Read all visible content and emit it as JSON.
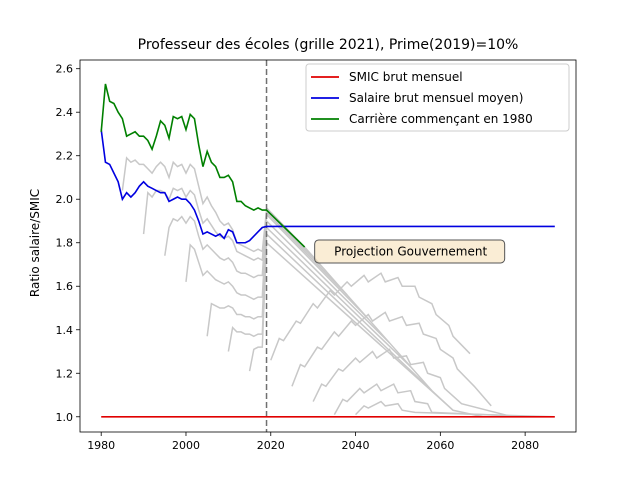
{
  "chart_data": {
    "type": "line",
    "title": "Professeur des écoles (grille 2021), Prime(2019)=10%",
    "xlabel": "",
    "ylabel": "Ratio salaire/SMIC",
    "xlim": [
      1975,
      2092
    ],
    "ylim": [
      0.93,
      2.64
    ],
    "xticks": [
      1980,
      2000,
      2020,
      2040,
      2060,
      2080
    ],
    "yticks": [
      1.0,
      1.2,
      1.4,
      1.6,
      1.8,
      2.0,
      2.2,
      2.4,
      2.6
    ],
    "xtick_labels": [
      "1980",
      "2000",
      "2020",
      "2040",
      "2060",
      "2080"
    ],
    "ytick_labels": [
      "1.0",
      "1.2",
      "1.4",
      "1.6",
      "1.8",
      "2.0",
      "2.2",
      "2.4",
      "2.6"
    ],
    "vline": {
      "x": 2019,
      "style": "dashed",
      "color": "#707070"
    },
    "annotation": {
      "text": "Projection Gouvernement",
      "x": 2053,
      "y": 1.76
    },
    "legend": {
      "location": "upper right"
    },
    "series": [
      {
        "name": "SMIC brut mensuel",
        "color": "#e00000",
        "points": [
          [
            1980,
            1.0
          ],
          [
            2087,
            1.0
          ]
        ]
      },
      {
        "name": "Salaire brut mensuel moyen)",
        "color": "#0000e0",
        "points": [
          [
            1980,
            2.32
          ],
          [
            1981,
            2.17
          ],
          [
            1982,
            2.16
          ],
          [
            1983,
            2.12
          ],
          [
            1984,
            2.08
          ],
          [
            1985,
            2.0
          ],
          [
            1986,
            2.03
          ],
          [
            1987,
            2.01
          ],
          [
            1988,
            2.03
          ],
          [
            1989,
            2.06
          ],
          [
            1990,
            2.08
          ],
          [
            1991,
            2.06
          ],
          [
            1992,
            2.05
          ],
          [
            1993,
            2.04
          ],
          [
            1994,
            2.03
          ],
          [
            1995,
            2.03
          ],
          [
            1996,
            1.99
          ],
          [
            1997,
            2.0
          ],
          [
            1998,
            2.01
          ],
          [
            1999,
            2.0
          ],
          [
            2000,
            2.0
          ],
          [
            2001,
            1.98
          ],
          [
            2002,
            1.95
          ],
          [
            2003,
            1.9
          ],
          [
            2004,
            1.84
          ],
          [
            2005,
            1.85
          ],
          [
            2006,
            1.84
          ],
          [
            2007,
            1.83
          ],
          [
            2008,
            1.84
          ],
          [
            2009,
            1.82
          ],
          [
            2010,
            1.86
          ],
          [
            2011,
            1.85
          ],
          [
            2012,
            1.8
          ],
          [
            2013,
            1.8
          ],
          [
            2014,
            1.8
          ],
          [
            2015,
            1.81
          ],
          [
            2016,
            1.83
          ],
          [
            2017,
            1.85
          ],
          [
            2018,
            1.87
          ],
          [
            2019,
            1.875
          ],
          [
            2087,
            1.875
          ]
        ]
      },
      {
        "name": "Carrière commençant en 1980",
        "color": "#008000",
        "points": [
          [
            1980,
            2.31
          ],
          [
            1981,
            2.53
          ],
          [
            1982,
            2.45
          ],
          [
            1983,
            2.44
          ],
          [
            1984,
            2.4
          ],
          [
            1985,
            2.37
          ],
          [
            1986,
            2.29
          ],
          [
            1987,
            2.3
          ],
          [
            1988,
            2.31
          ],
          [
            1989,
            2.29
          ],
          [
            1990,
            2.29
          ],
          [
            1991,
            2.27
          ],
          [
            1992,
            2.23
          ],
          [
            1993,
            2.29
          ],
          [
            1994,
            2.36
          ],
          [
            1995,
            2.34
          ],
          [
            1996,
            2.28
          ],
          [
            1997,
            2.38
          ],
          [
            1998,
            2.37
          ],
          [
            1999,
            2.38
          ],
          [
            2000,
            2.32
          ],
          [
            2001,
            2.39
          ],
          [
            2002,
            2.37
          ],
          [
            2003,
            2.25
          ],
          [
            2004,
            2.15
          ],
          [
            2005,
            2.22
          ],
          [
            2006,
            2.17
          ],
          [
            2007,
            2.15
          ],
          [
            2008,
            2.1
          ],
          [
            2009,
            2.1
          ],
          [
            2010,
            2.11
          ],
          [
            2011,
            2.08
          ],
          [
            2012,
            1.99
          ],
          [
            2013,
            1.99
          ],
          [
            2014,
            1.97
          ],
          [
            2015,
            1.96
          ],
          [
            2016,
            1.95
          ],
          [
            2017,
            1.96
          ],
          [
            2018,
            1.95
          ],
          [
            2019,
            1.95
          ],
          [
            2028,
            1.78
          ]
        ]
      }
    ],
    "background_series_color": "#c8c8c8",
    "background_series": [
      [
        [
          1985,
          2.04
        ],
        [
          1986,
          2.19
        ],
        [
          1987,
          2.17
        ],
        [
          1988,
          2.18
        ],
        [
          1989,
          2.16
        ],
        [
          1990,
          2.16
        ],
        [
          1991,
          2.14
        ],
        [
          1992,
          2.12
        ],
        [
          1993,
          2.15
        ],
        [
          1994,
          2.17
        ],
        [
          1995,
          2.15
        ],
        [
          1996,
          2.1
        ],
        [
          1997,
          2.17
        ],
        [
          1998,
          2.15
        ],
        [
          1999,
          2.16
        ],
        [
          2000,
          2.12
        ],
        [
          2001,
          2.16
        ],
        [
          2002,
          2.14
        ],
        [
          2003,
          2.06
        ],
        [
          2004,
          1.98
        ],
        [
          2005,
          2.01
        ],
        [
          2006,
          1.97
        ],
        [
          2007,
          1.94
        ],
        [
          2008,
          1.9
        ],
        [
          2009,
          1.88
        ],
        [
          2010,
          1.89
        ],
        [
          2011,
          1.86
        ],
        [
          2012,
          1.8
        ],
        [
          2013,
          1.79
        ],
        [
          2014,
          1.78
        ],
        [
          2015,
          1.77
        ],
        [
          2016,
          1.76
        ],
        [
          2017,
          1.77
        ],
        [
          2018,
          1.76
        ],
        [
          2019,
          1.95
        ],
        [
          2033,
          1.67
        ]
      ],
      [
        [
          1990,
          1.84
        ],
        [
          1991,
          2.03
        ],
        [
          1992,
          2.01
        ],
        [
          1993,
          2.04
        ],
        [
          1994,
          2.04
        ],
        [
          1995,
          2.03
        ],
        [
          1996,
          2.0
        ],
        [
          1997,
          2.05
        ],
        [
          1998,
          2.04
        ],
        [
          1999,
          2.05
        ],
        [
          2000,
          2.01
        ],
        [
          2001,
          2.04
        ],
        [
          2002,
          2.02
        ],
        [
          2003,
          1.95
        ],
        [
          2004,
          1.89
        ],
        [
          2005,
          1.91
        ],
        [
          2006,
          1.88
        ],
        [
          2007,
          1.85
        ],
        [
          2008,
          1.83
        ],
        [
          2009,
          1.82
        ],
        [
          2010,
          1.83
        ],
        [
          2011,
          1.81
        ],
        [
          2012,
          1.76
        ],
        [
          2013,
          1.75
        ],
        [
          2014,
          1.74
        ],
        [
          2015,
          1.73
        ],
        [
          2016,
          1.72
        ],
        [
          2017,
          1.73
        ],
        [
          2018,
          1.72
        ],
        [
          2019,
          1.94
        ],
        [
          2038,
          1.56
        ]
      ],
      [
        [
          1995,
          1.74
        ],
        [
          1996,
          1.87
        ],
        [
          1997,
          1.91
        ],
        [
          1998,
          1.9
        ],
        [
          1999,
          1.92
        ],
        [
          2000,
          1.89
        ],
        [
          2001,
          1.92
        ],
        [
          2002,
          1.9
        ],
        [
          2003,
          1.83
        ],
        [
          2004,
          1.77
        ],
        [
          2005,
          1.79
        ],
        [
          2006,
          1.77
        ],
        [
          2007,
          1.75
        ],
        [
          2008,
          1.73
        ],
        [
          2009,
          1.72
        ],
        [
          2010,
          1.73
        ],
        [
          2011,
          1.71
        ],
        [
          2012,
          1.67
        ],
        [
          2013,
          1.66
        ],
        [
          2014,
          1.66
        ],
        [
          2015,
          1.65
        ],
        [
          2016,
          1.64
        ],
        [
          2017,
          1.65
        ],
        [
          2018,
          1.65
        ],
        [
          2019,
          1.93
        ],
        [
          2043,
          1.45
        ]
      ],
      [
        [
          2000,
          1.62
        ],
        [
          2001,
          1.79
        ],
        [
          2002,
          1.77
        ],
        [
          2003,
          1.71
        ],
        [
          2004,
          1.65
        ],
        [
          2005,
          1.67
        ],
        [
          2006,
          1.65
        ],
        [
          2007,
          1.63
        ],
        [
          2008,
          1.62
        ],
        [
          2009,
          1.61
        ],
        [
          2010,
          1.62
        ],
        [
          2011,
          1.6
        ],
        [
          2012,
          1.57
        ],
        [
          2013,
          1.56
        ],
        [
          2014,
          1.56
        ],
        [
          2015,
          1.55
        ],
        [
          2016,
          1.54
        ],
        [
          2017,
          1.55
        ],
        [
          2018,
          1.55
        ],
        [
          2019,
          1.9
        ],
        [
          2048,
          1.34
        ]
      ],
      [
        [
          2005,
          1.37
        ],
        [
          2006,
          1.52
        ],
        [
          2007,
          1.51
        ],
        [
          2008,
          1.5
        ],
        [
          2009,
          1.5
        ],
        [
          2010,
          1.51
        ],
        [
          2011,
          1.5
        ],
        [
          2012,
          1.47
        ],
        [
          2013,
          1.47
        ],
        [
          2014,
          1.46
        ],
        [
          2015,
          1.46
        ],
        [
          2016,
          1.45
        ],
        [
          2017,
          1.46
        ],
        [
          2018,
          1.46
        ],
        [
          2019,
          1.87
        ],
        [
          2053,
          1.23
        ]
      ],
      [
        [
          2010,
          1.3
        ],
        [
          2011,
          1.41
        ],
        [
          2012,
          1.39
        ],
        [
          2013,
          1.39
        ],
        [
          2014,
          1.38
        ],
        [
          2015,
          1.38
        ],
        [
          2016,
          1.37
        ],
        [
          2017,
          1.38
        ],
        [
          2018,
          1.38
        ],
        [
          2019,
          1.84
        ],
        [
          2058,
          1.12
        ]
      ],
      [
        [
          2015,
          1.21
        ],
        [
          2016,
          1.31
        ],
        [
          2017,
          1.32
        ],
        [
          2018,
          1.32
        ],
        [
          2019,
          1.8
        ],
        [
          2063,
          1.03
        ]
      ],
      [
        [
          2020,
          1.26
        ],
        [
          2022,
          1.36
        ],
        [
          2023,
          1.35
        ],
        [
          2026,
          1.44
        ],
        [
          2027,
          1.43
        ],
        [
          2030,
          1.52
        ],
        [
          2031,
          1.5
        ],
        [
          2034,
          1.58
        ],
        [
          2035,
          1.56
        ],
        [
          2038,
          1.62
        ],
        [
          2039,
          1.6
        ],
        [
          2042,
          1.65
        ],
        [
          2043,
          1.62
        ],
        [
          2046,
          1.66
        ],
        [
          2047,
          1.62
        ],
        [
          2050,
          1.64
        ],
        [
          2051,
          1.6
        ],
        [
          2054,
          1.6
        ],
        [
          2055,
          1.55
        ],
        [
          2058,
          1.52
        ],
        [
          2059,
          1.47
        ],
        [
          2062,
          1.42
        ],
        [
          2063,
          1.37
        ],
        [
          2067,
          1.29
        ]
      ],
      [
        [
          2025,
          1.14
        ],
        [
          2027,
          1.24
        ],
        [
          2028,
          1.23
        ],
        [
          2031,
          1.32
        ],
        [
          2032,
          1.31
        ],
        [
          2035,
          1.39
        ],
        [
          2036,
          1.37
        ],
        [
          2039,
          1.44
        ],
        [
          2040,
          1.42
        ],
        [
          2043,
          1.47
        ],
        [
          2044,
          1.44
        ],
        [
          2047,
          1.48
        ],
        [
          2048,
          1.44
        ],
        [
          2051,
          1.46
        ],
        [
          2052,
          1.42
        ],
        [
          2055,
          1.43
        ],
        [
          2056,
          1.38
        ],
        [
          2059,
          1.36
        ],
        [
          2060,
          1.31
        ],
        [
          2063,
          1.27
        ],
        [
          2064,
          1.22
        ],
        [
          2068,
          1.14
        ],
        [
          2072,
          1.05
        ]
      ],
      [
        [
          2030,
          1.07
        ],
        [
          2032,
          1.15
        ],
        [
          2033,
          1.14
        ],
        [
          2036,
          1.22
        ],
        [
          2037,
          1.21
        ],
        [
          2040,
          1.27
        ],
        [
          2041,
          1.25
        ],
        [
          2044,
          1.3
        ],
        [
          2045,
          1.27
        ],
        [
          2048,
          1.31
        ],
        [
          2049,
          1.27
        ],
        [
          2052,
          1.28
        ],
        [
          2053,
          1.24
        ],
        [
          2056,
          1.25
        ],
        [
          2057,
          1.2
        ],
        [
          2060,
          1.18
        ],
        [
          2061,
          1.13
        ],
        [
          2065,
          1.06
        ],
        [
          2077,
          1.0
        ]
      ],
      [
        [
          2035,
          1.01
        ],
        [
          2037,
          1.08
        ],
        [
          2038,
          1.07
        ],
        [
          2041,
          1.13
        ],
        [
          2042,
          1.11
        ],
        [
          2045,
          1.15
        ],
        [
          2046,
          1.12
        ],
        [
          2049,
          1.15
        ],
        [
          2050,
          1.11
        ],
        [
          2053,
          1.12
        ],
        [
          2054,
          1.07
        ],
        [
          2057,
          1.06
        ],
        [
          2058,
          1.02
        ],
        [
          2082,
          1.0
        ]
      ],
      [
        [
          2040,
          1.01
        ],
        [
          2042,
          1.05
        ],
        [
          2043,
          1.04
        ],
        [
          2046,
          1.07
        ],
        [
          2047,
          1.05
        ],
        [
          2050,
          1.06
        ],
        [
          2051,
          1.03
        ],
        [
          2054,
          1.02
        ],
        [
          2087,
          1.0
        ]
      ],
      [
        [
          2019,
          1.96
        ],
        [
          2028,
          1.78
        ],
        [
          2033,
          1.67
        ],
        [
          2038,
          1.56
        ],
        [
          2043,
          1.45
        ],
        [
          2048,
          1.34
        ],
        [
          2053,
          1.23
        ],
        [
          2058,
          1.12
        ],
        [
          2063,
          1.03
        ],
        [
          2070,
          1.0
        ],
        [
          2080,
          1.0
        ]
      ]
    ]
  }
}
